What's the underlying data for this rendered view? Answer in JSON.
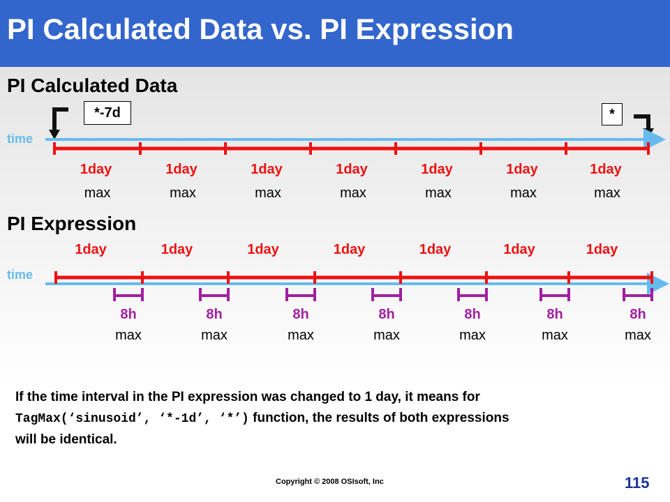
{
  "title": "PI Calculated Data vs. PI Expression",
  "colors": {
    "title_bar": "#3366cc",
    "timeline": "#66bbee",
    "day_interval": "#ee1111",
    "hour_interval": "#a020a0"
  },
  "section1": {
    "heading": "PI Calculated Data",
    "time_label": "time",
    "start_box": "*-7d",
    "end_box": "*",
    "intervals": [
      {
        "label": "1day",
        "func": "max"
      },
      {
        "label": "1day",
        "func": "max"
      },
      {
        "label": "1day",
        "func": "max"
      },
      {
        "label": "1day",
        "func": "max"
      },
      {
        "label": "1day",
        "func": "max"
      },
      {
        "label": "1day",
        "func": "max"
      },
      {
        "label": "1day",
        "func": "max"
      }
    ]
  },
  "section2": {
    "heading": "PI Expression",
    "time_label": "time",
    "day_labels": [
      "1day",
      "1day",
      "1day",
      "1day",
      "1day",
      "1day",
      "1day"
    ],
    "sub_intervals": [
      {
        "label": "8h",
        "func": "max"
      },
      {
        "label": "8h",
        "func": "max"
      },
      {
        "label": "8h",
        "func": "max"
      },
      {
        "label": "8h",
        "func": "max"
      },
      {
        "label": "8h",
        "func": "max"
      },
      {
        "label": "8h",
        "func": "max"
      },
      {
        "label": "8h",
        "func": "max"
      }
    ]
  },
  "note": {
    "line1": "If the time interval in the PI expression was changed to 1 day, it means for",
    "code": "TagMax(‘sinusoid’, ‘*-1d’, ‘*’)",
    "line2_rest": " function, the results of both expressions",
    "line3": "will be identical."
  },
  "footer": {
    "copyright": "Copyright © 2008 OSIsoft, Inc",
    "page_number": "115"
  }
}
